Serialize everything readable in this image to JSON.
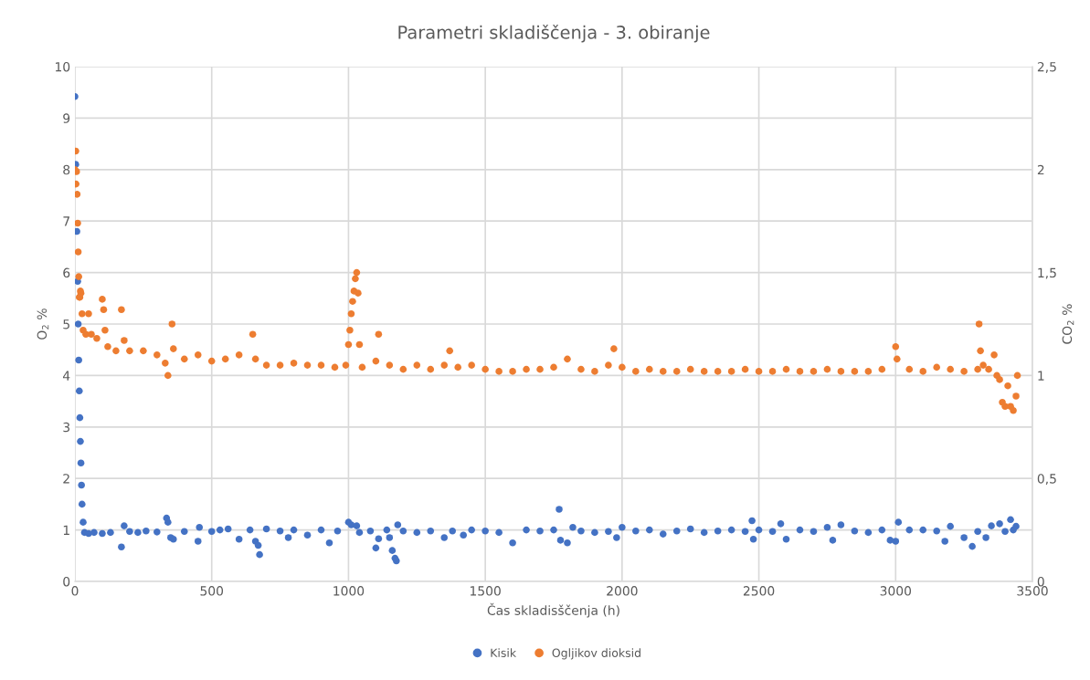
{
  "chart_data": {
    "type": "scatter",
    "title": "Parametri skladiščenja - 3. obiranje",
    "xlabel": "Čas skladisščenja (h)",
    "ylabel": "O$_{2}$ %",
    "y2label": "CO$_{2}$ %",
    "xlim": [
      0,
      3500
    ],
    "xticks": [
      0,
      500,
      1000,
      1500,
      2000,
      2500,
      3000,
      3500
    ],
    "ylim": [
      0,
      10
    ],
    "yticks": [
      0,
      1,
      2,
      3,
      4,
      5,
      6,
      7,
      8,
      9,
      10
    ],
    "y2lim": [
      0,
      2.5
    ],
    "y2ticks": [
      0,
      {
        "value": 0.5,
        "label": "0,5"
      },
      1,
      {
        "value": 1.5,
        "label": "1,5"
      },
      2,
      {
        "value": 2.5,
        "label": "2,5"
      }
    ],
    "grid": true,
    "legend": "bottom",
    "marker": "circle",
    "series": [
      {
        "name": "Kisik",
        "color": "#4472c4",
        "x": [
          0,
          3,
          7,
          10,
          12,
          14,
          16,
          18,
          20,
          22,
          24,
          26,
          30,
          35,
          50,
          70,
          100,
          130,
          170,
          180,
          200,
          230,
          260,
          300,
          335,
          340,
          350,
          360,
          400,
          450,
          455,
          500,
          530,
          560,
          600,
          640,
          660,
          670,
          675,
          700,
          750,
          780,
          800,
          850,
          900,
          930,
          960,
          1000,
          1010,
          1030,
          1040,
          1080,
          1100,
          1110,
          1140,
          1150,
          1160,
          1170,
          1175,
          1180,
          1200,
          1250,
          1300,
          1350,
          1380,
          1420,
          1450,
          1500,
          1550,
          1600,
          1650,
          1700,
          1750,
          1770,
          1775,
          1800,
          1820,
          1850,
          1900,
          1950,
          1980,
          2000,
          2050,
          2100,
          2150,
          2200,
          2250,
          2300,
          2350,
          2400,
          2450,
          2475,
          2480,
          2500,
          2550,
          2580,
          2600,
          2650,
          2700,
          2750,
          2770,
          2800,
          2850,
          2900,
          2950,
          2980,
          3000,
          3010,
          3050,
          3100,
          3150,
          3180,
          3200,
          3250,
          3280,
          3300,
          3330,
          3350,
          3380,
          3400,
          3420,
          3430,
          3440
        ],
        "values": [
          9.42,
          8.1,
          6.8,
          5.83,
          5.0,
          4.3,
          3.7,
          3.18,
          2.72,
          2.3,
          1.87,
          1.5,
          1.15,
          0.95,
          0.93,
          0.95,
          0.93,
          0.95,
          0.67,
          1.08,
          0.97,
          0.95,
          0.98,
          0.96,
          1.23,
          1.15,
          0.85,
          0.82,
          0.97,
          0.78,
          1.05,
          0.97,
          1.0,
          1.02,
          0.82,
          1.0,
          0.78,
          0.7,
          0.52,
          1.02,
          0.98,
          0.85,
          1.0,
          0.9,
          1.0,
          0.75,
          0.98,
          1.15,
          1.1,
          1.08,
          0.95,
          0.98,
          0.65,
          0.83,
          1.0,
          0.85,
          0.6,
          0.45,
          0.4,
          1.1,
          0.98,
          0.95,
          0.98,
          0.85,
          0.98,
          0.9,
          1.0,
          0.98,
          0.95,
          0.75,
          1.0,
          0.98,
          1.0,
          1.4,
          0.8,
          0.75,
          1.05,
          0.98,
          0.95,
          0.97,
          0.85,
          1.05,
          0.98,
          1.0,
          0.92,
          0.98,
          1.02,
          0.95,
          0.98,
          1.0,
          0.97,
          1.18,
          0.82,
          1.0,
          0.97,
          1.12,
          0.82,
          1.0,
          0.97,
          1.05,
          0.8,
          1.1,
          0.98,
          0.95,
          1.0,
          0.8,
          0.78,
          1.15,
          1.0,
          1.0,
          0.98,
          0.78,
          1.07,
          0.85,
          0.68,
          0.97,
          0.85,
          1.08,
          1.12,
          0.97,
          1.2,
          1.0,
          1.07
        ]
      },
      {
        "name": "Ogljikov dioksid",
        "color": "#ed7d31",
        "axis": "y2",
        "x": [
          0,
          3,
          4,
          6,
          8,
          10,
          12,
          14,
          16,
          18,
          20,
          22,
          26,
          30,
          40,
          50,
          60,
          80,
          100,
          105,
          110,
          120,
          150,
          170,
          180,
          200,
          250,
          300,
          330,
          340,
          355,
          360,
          400,
          450,
          500,
          550,
          600,
          650,
          660,
          700,
          750,
          800,
          850,
          900,
          950,
          990,
          1000,
          1005,
          1010,
          1015,
          1020,
          1025,
          1030,
          1035,
          1040,
          1050,
          1100,
          1110,
          1150,
          1200,
          1250,
          1300,
          1350,
          1370,
          1400,
          1450,
          1500,
          1550,
          1600,
          1650,
          1700,
          1750,
          1800,
          1850,
          1900,
          1950,
          1970,
          2000,
          2050,
          2100,
          2150,
          2200,
          2250,
          2300,
          2350,
          2400,
          2450,
          2500,
          2550,
          2600,
          2650,
          2700,
          2750,
          2800,
          2850,
          2900,
          2950,
          3000,
          3005,
          3050,
          3100,
          3150,
          3200,
          3250,
          3300,
          3305,
          3310,
          3320,
          3340,
          3360,
          3370,
          3380,
          3390,
          3400,
          3410,
          3420,
          3430,
          3440,
          3445
        ],
        "values": [
          2.0,
          2.09,
          1.93,
          1.99,
          1.88,
          1.74,
          1.6,
          1.48,
          1.38,
          1.38,
          1.41,
          1.4,
          1.3,
          1.22,
          1.2,
          1.3,
          1.2,
          1.18,
          1.37,
          1.32,
          1.22,
          1.14,
          1.12,
          1.32,
          1.17,
          1.12,
          1.12,
          1.1,
          1.06,
          1.0,
          1.25,
          1.13,
          1.08,
          1.1,
          1.07,
          1.08,
          1.1,
          1.2,
          1.08,
          1.05,
          1.05,
          1.06,
          1.05,
          1.05,
          1.04,
          1.05,
          1.15,
          1.22,
          1.3,
          1.36,
          1.41,
          1.47,
          1.5,
          1.4,
          1.15,
          1.04,
          1.07,
          1.2,
          1.05,
          1.03,
          1.05,
          1.03,
          1.05,
          1.12,
          1.04,
          1.05,
          1.03,
          1.02,
          1.02,
          1.03,
          1.03,
          1.04,
          1.08,
          1.03,
          1.02,
          1.05,
          1.13,
          1.04,
          1.02,
          1.03,
          1.02,
          1.02,
          1.03,
          1.02,
          1.02,
          1.02,
          1.03,
          1.02,
          1.02,
          1.03,
          1.02,
          1.02,
          1.03,
          1.02,
          1.02,
          1.02,
          1.03,
          1.14,
          1.08,
          1.03,
          1.02,
          1.04,
          1.03,
          1.02,
          1.03,
          1.25,
          1.12,
          1.05,
          1.03,
          1.1,
          1.0,
          0.98,
          0.87,
          0.85,
          0.95,
          0.85,
          0.83,
          0.9,
          1.0
        ]
      }
    ]
  }
}
